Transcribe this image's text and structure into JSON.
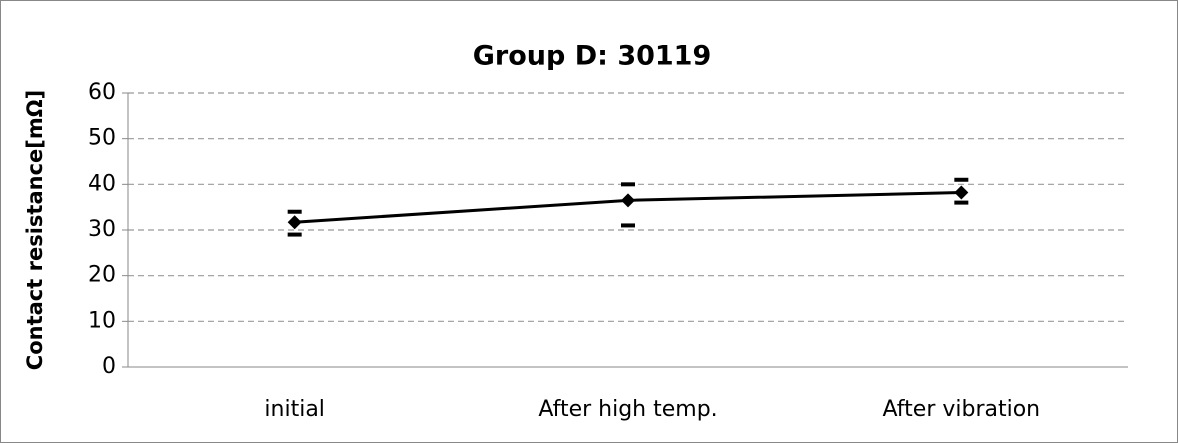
{
  "chart_data": {
    "type": "line",
    "title": "Group D: 30119",
    "y_label": "Contact resistance[mΩ]",
    "categories": [
      "initial",
      "After high temp.",
      "After vibration"
    ],
    "values": [
      31.7,
      36.5,
      38.2
    ],
    "errors_plus": [
      2.3,
      3.5,
      2.8
    ],
    "errors_minus": [
      2.7,
      5.5,
      2.2
    ],
    "color": "#000000",
    "ylim": [
      0,
      60
    ],
    "yticks": [
      0,
      10,
      20,
      30,
      40,
      50,
      60
    ],
    "grid": true
  }
}
